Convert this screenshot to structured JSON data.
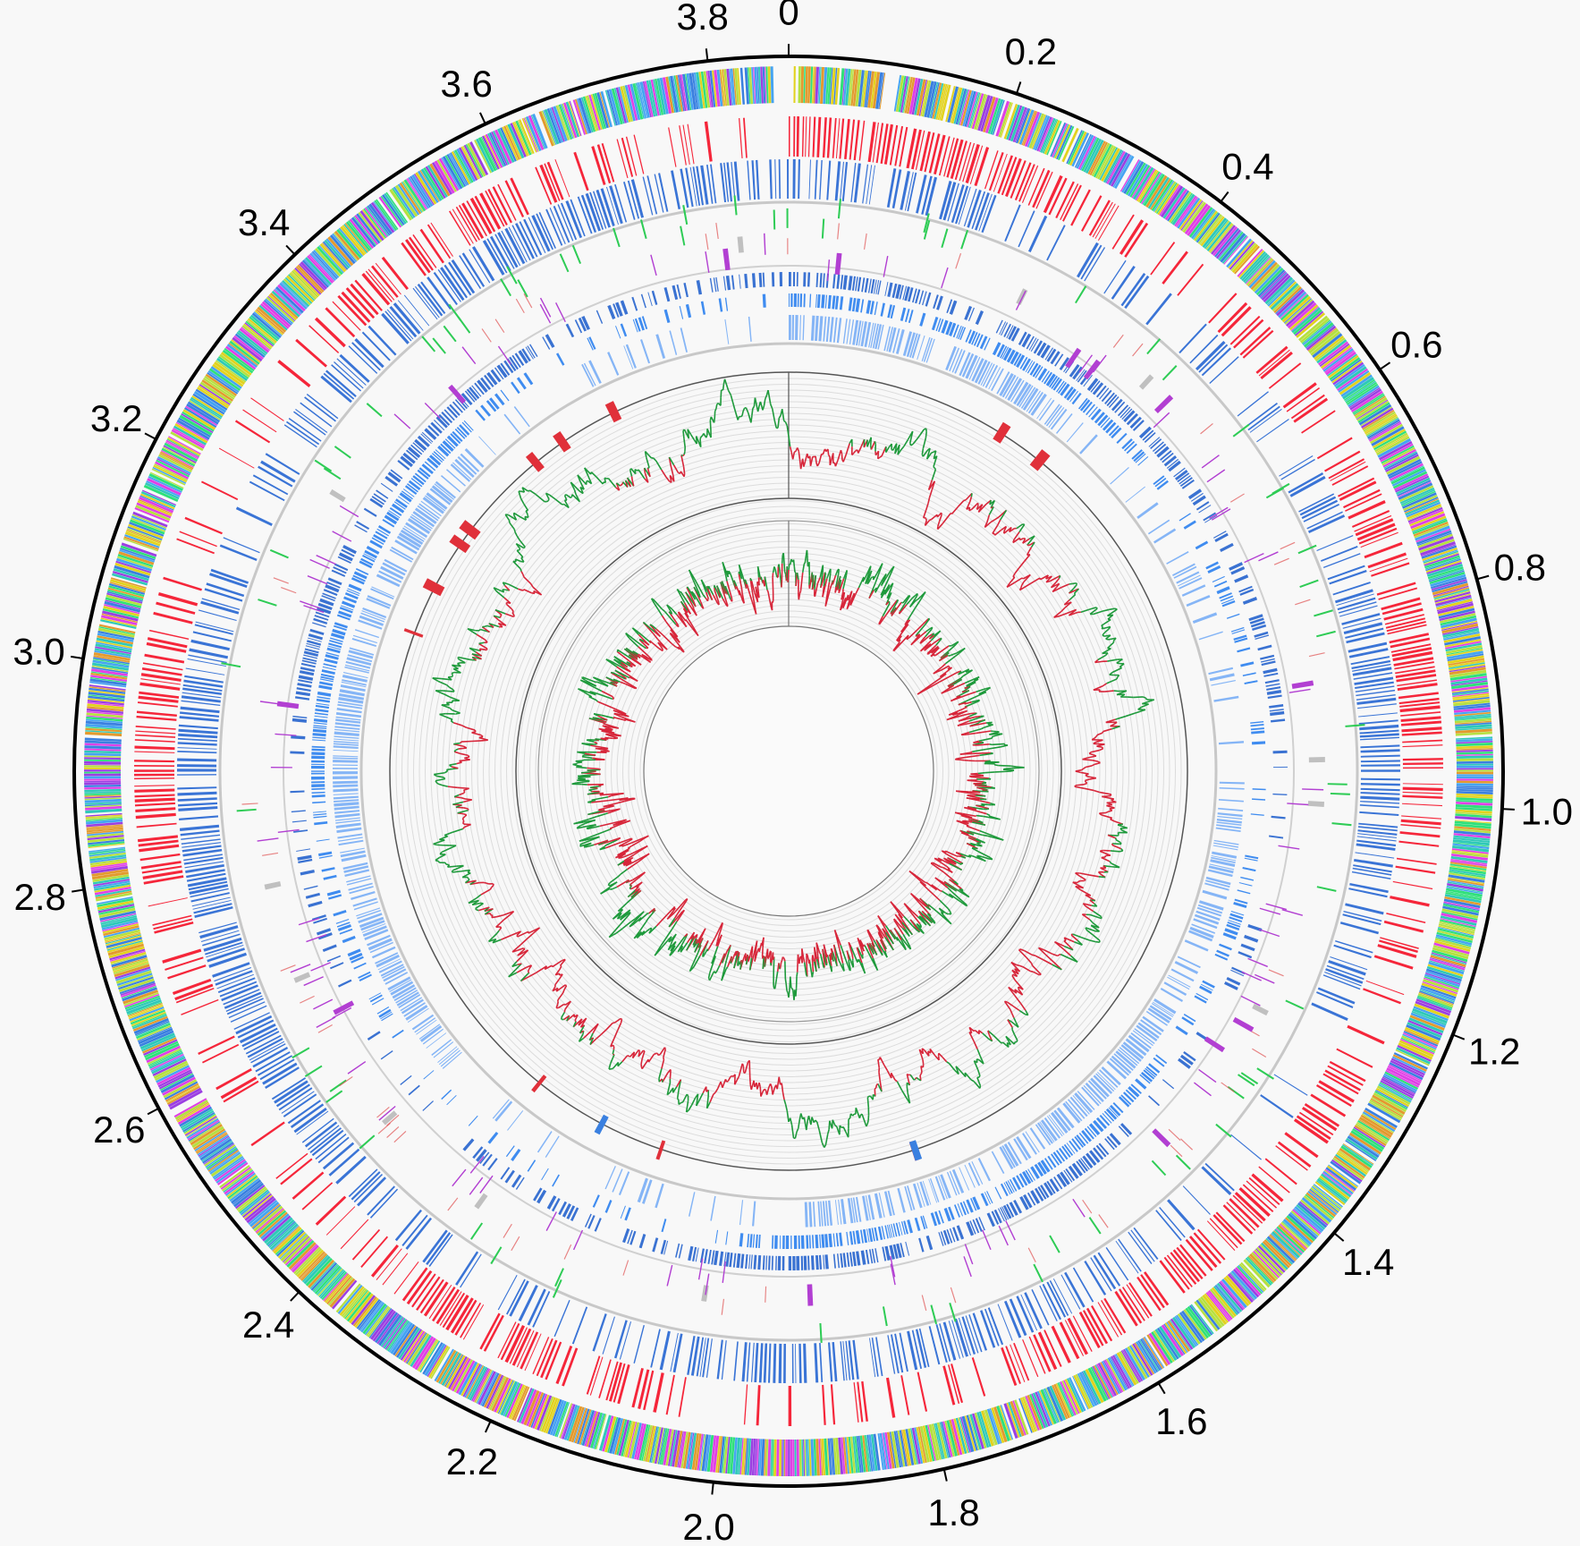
{
  "chart_data": {
    "type": "circular-genome-map",
    "genome_length": 3.87,
    "tick_labels": [
      "0",
      "0.2",
      "0.4",
      "0.6",
      "0.8",
      "1.0",
      "1.2",
      "1.4",
      "1.6",
      "1.8",
      "2.0",
      "2.2",
      "2.4",
      "2.6",
      "2.8",
      "3.0",
      "3.2",
      "3.4",
      "3.6",
      "3.8"
    ],
    "tick_values": [
      0,
      0.2,
      0.4,
      0.6,
      0.8,
      1.0,
      1.2,
      1.4,
      1.6,
      1.8,
      2.0,
      2.2,
      2.4,
      2.6,
      2.8,
      3.0,
      3.2,
      3.4,
      3.6,
      3.8
    ],
    "tracks": [
      {
        "id": "cog",
        "colors": [
          "#e2d21e",
          "#9b3fe2",
          "#2fe07a",
          "#3a80e0",
          "#e040e6",
          "#e39a2e",
          "#2fc9b8",
          "#45a4f2",
          "#b6e040"
        ]
      },
      {
        "id": "forward-cds",
        "color": "#f5263a"
      },
      {
        "id": "reverse-cds",
        "color": "#3a74d6"
      },
      {
        "id": "rna-features",
        "colors": {
          "trna": "#2ecc55",
          "rrna": "#c0c0c0",
          "other": "#e05050",
          "repeat": "#b23fd2"
        }
      },
      {
        "id": "blast-1",
        "color": "#3a72d2"
      },
      {
        "id": "blast-2",
        "color": "#3f8cf0"
      },
      {
        "id": "blast-3",
        "color": "#85b5f6"
      },
      {
        "id": "islands",
        "colors": [
          "#e0303a",
          "#3a80e0"
        ]
      },
      {
        "id": "gc-content",
        "above": "#1f9a3c",
        "below": "#d7263a"
      },
      {
        "id": "gc-skew",
        "above": "#1f9a3c",
        "below": "#d7263a"
      }
    ],
    "background": "#f8f8f8"
  }
}
